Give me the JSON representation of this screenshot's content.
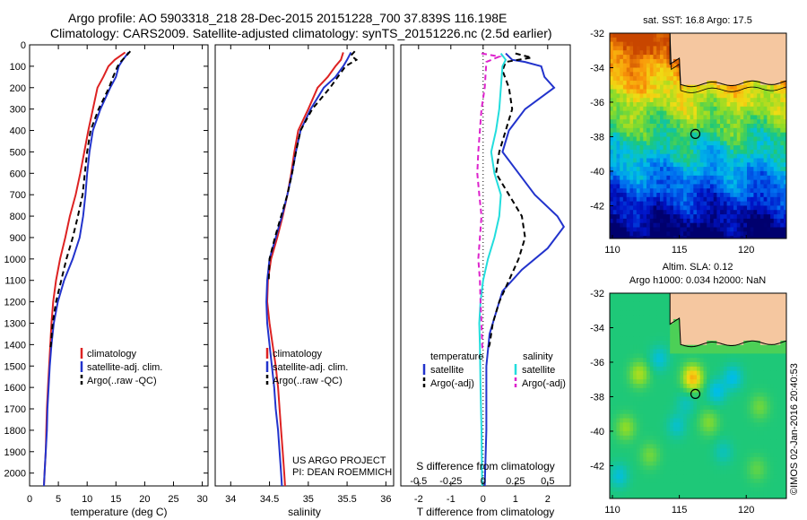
{
  "header": {
    "line1": "Argo profile: AO 5903318_218 28-Dec-2015 20151228_700 37.839S 116.198E",
    "line2": "Climatology: CARS2009. Satellite-adjusted climatology: synTS_20151226.nc (2.5d earlier)"
  },
  "credit": {
    "project": "US ARGO PROJECT",
    "pi": "PI: DEAN ROEMMICH",
    "stamp": "©IMOS 02-Jan-2016 20:40:53"
  },
  "colors": {
    "climatology": "#dd2222",
    "satellite": "#2233cc",
    "argo": "#000000",
    "cyan": "#22dddd",
    "magenta": "#dd22cc"
  },
  "chart_data": [
    {
      "type": "line",
      "xlabel": "temperature (deg C)",
      "ylabel": "",
      "xlim": [
        0,
        31
      ],
      "ylim": [
        2060,
        0
      ],
      "xticks": [
        0,
        5,
        10,
        15,
        20,
        25,
        30
      ],
      "yticks": [
        0,
        100,
        200,
        300,
        400,
        500,
        600,
        700,
        800,
        900,
        1000,
        1100,
        1200,
        1300,
        1400,
        1500,
        1600,
        1700,
        1800,
        1900,
        2000
      ],
      "legend": [
        "climatology",
        "satellite-adj. clim.",
        "Argo(..raw -QC)"
      ],
      "series": [
        {
          "name": "climatology",
          "color": "#dd2222",
          "dash": false,
          "points": [
            [
              16.6,
              35
            ],
            [
              14.8,
              70
            ],
            [
              13.7,
              100
            ],
            [
              12.8,
              150
            ],
            [
              11.8,
              200
            ],
            [
              11.0,
              300
            ],
            [
              10.2,
              400
            ],
            [
              9.5,
              500
            ],
            [
              8.8,
              600
            ],
            [
              8.0,
              700
            ],
            [
              7.0,
              800
            ],
            [
              6.2,
              900
            ],
            [
              5.3,
              1000
            ],
            [
              4.6,
              1100
            ],
            [
              4.1,
              1200
            ],
            [
              3.8,
              1300
            ],
            [
              3.6,
              1400
            ],
            [
              3.4,
              1500
            ],
            [
              3.2,
              1600
            ],
            [
              3.0,
              1700
            ],
            [
              2.9,
              1800
            ],
            [
              2.8,
              1900
            ],
            [
              2.6,
              2000
            ],
            [
              2.5,
              2060
            ]
          ]
        },
        {
          "name": "satellite-adj. clim.",
          "color": "#2233cc",
          "dash": false,
          "points": [
            [
              17.2,
              35
            ],
            [
              16.2,
              70
            ],
            [
              15.5,
              100
            ],
            [
              15.0,
              150
            ],
            [
              14.0,
              200
            ],
            [
              12.3,
              300
            ],
            [
              11.0,
              400
            ],
            [
              10.4,
              500
            ],
            [
              10.0,
              600
            ],
            [
              9.7,
              700
            ],
            [
              9.3,
              800
            ],
            [
              8.7,
              900
            ],
            [
              7.5,
              1000
            ],
            [
              6.0,
              1100
            ],
            [
              4.9,
              1200
            ],
            [
              4.2,
              1300
            ],
            [
              3.8,
              1400
            ],
            [
              3.5,
              1500
            ],
            [
              3.3,
              1600
            ],
            [
              3.1,
              1700
            ],
            [
              3.0,
              1800
            ],
            [
              2.8,
              1900
            ],
            [
              2.6,
              2000
            ],
            [
              2.5,
              2060
            ]
          ]
        },
        {
          "name": "Argo(..raw -QC)",
          "color": "#000000",
          "dash": true,
          "points": [
            [
              17.5,
              30
            ],
            [
              16.5,
              60
            ],
            [
              15.8,
              80
            ],
            [
              15.3,
              100
            ],
            [
              14.5,
              150
            ],
            [
              13.8,
              200
            ],
            [
              12.0,
              300
            ],
            [
              10.6,
              400
            ],
            [
              10.0,
              500
            ],
            [
              9.6,
              600
            ],
            [
              9.2,
              700
            ],
            [
              8.4,
              800
            ],
            [
              7.5,
              900
            ],
            [
              6.4,
              1000
            ],
            [
              5.5,
              1100
            ],
            [
              4.6,
              1200
            ],
            [
              4.0,
              1300
            ],
            [
              3.7,
              1400
            ],
            [
              3.6,
              1420
            ]
          ]
        }
      ]
    },
    {
      "type": "line",
      "xlabel": "salinity",
      "ylabel": "",
      "xlim": [
        33.8,
        36.1
      ],
      "ylim": [
        2060,
        0
      ],
      "xticks": [
        34,
        34.5,
        35,
        35.5,
        36
      ],
      "yticks": [],
      "legend": [
        "climatology",
        "satellite-adj. clim.",
        "Argo(..raw -QC)"
      ],
      "series": [
        {
          "name": "climatology",
          "color": "#dd2222",
          "dash": false,
          "points": [
            [
              35.45,
              35
            ],
            [
              35.42,
              70
            ],
            [
              35.35,
              100
            ],
            [
              35.25,
              150
            ],
            [
              35.12,
              200
            ],
            [
              35.0,
              300
            ],
            [
              34.87,
              400
            ],
            [
              34.82,
              500
            ],
            [
              34.78,
              600
            ],
            [
              34.73,
              700
            ],
            [
              34.67,
              800
            ],
            [
              34.6,
              900
            ],
            [
              34.52,
              1000
            ],
            [
              34.48,
              1100
            ],
            [
              34.47,
              1200
            ],
            [
              34.5,
              1300
            ],
            [
              34.54,
              1400
            ],
            [
              34.58,
              1500
            ],
            [
              34.61,
              1600
            ],
            [
              34.63,
              1700
            ],
            [
              34.65,
              1800
            ],
            [
              34.67,
              1900
            ],
            [
              34.69,
              2000
            ],
            [
              34.7,
              2060
            ]
          ]
        },
        {
          "name": "satellite-adj. clim.",
          "color": "#2233cc",
          "dash": false,
          "points": [
            [
              35.55,
              35
            ],
            [
              35.5,
              70
            ],
            [
              35.45,
              100
            ],
            [
              35.35,
              150
            ],
            [
              35.2,
              200
            ],
            [
              35.03,
              300
            ],
            [
              34.9,
              400
            ],
            [
              34.84,
              500
            ],
            [
              34.79,
              600
            ],
            [
              34.73,
              700
            ],
            [
              34.66,
              800
            ],
            [
              34.58,
              900
            ],
            [
              34.5,
              1000
            ],
            [
              34.47,
              1100
            ],
            [
              34.46,
              1200
            ],
            [
              34.47,
              1300
            ],
            [
              34.5,
              1400
            ],
            [
              34.53,
              1500
            ],
            [
              34.56,
              1600
            ],
            [
              34.58,
              1700
            ],
            [
              34.61,
              1800
            ],
            [
              34.63,
              1900
            ],
            [
              34.65,
              2000
            ],
            [
              34.66,
              2060
            ]
          ]
        },
        {
          "name": "Argo(..raw -QC)",
          "color": "#000000",
          "dash": true,
          "points": [
            [
              35.6,
              30
            ],
            [
              35.55,
              50
            ],
            [
              35.62,
              70
            ],
            [
              35.48,
              100
            ],
            [
              35.38,
              150
            ],
            [
              35.28,
              200
            ],
            [
              35.05,
              300
            ],
            [
              34.9,
              400
            ],
            [
              34.84,
              500
            ],
            [
              34.79,
              600
            ],
            [
              34.73,
              700
            ],
            [
              34.65,
              800
            ],
            [
              34.57,
              900
            ],
            [
              34.5,
              1000
            ],
            [
              34.49,
              1100
            ]
          ]
        }
      ]
    },
    {
      "type": "line",
      "xlabel": "T difference from climatology",
      "xlabel2": "S difference from climatology",
      "ylabel": "",
      "xlim": [
        -2.55,
        2.7
      ],
      "ylim": [
        2060,
        0
      ],
      "xticks": [
        -2,
        -1,
        0,
        1,
        2
      ],
      "xticks2": [
        -0.5,
        -0.25,
        0,
        0.25,
        0.5
      ],
      "xtick2_labels": [
        "-0.5",
        "-0.25",
        "0",
        "0.25",
        "0.5"
      ],
      "yticks": [],
      "legend_temperature_header": "temperature",
      "legend_salinity_header": "salinity",
      "legend": [
        "satellite",
        "Argo(-adj)",
        "satellite",
        "Argo(-adj)"
      ],
      "series": [
        {
          "name": "satellite",
          "color": "#2233cc",
          "dash": false,
          "points": [
            [
              0.7,
              40
            ],
            [
              0.9,
              70
            ],
            [
              1.3,
              80
            ],
            [
              1.8,
              100
            ],
            [
              1.9,
              150
            ],
            [
              2.2,
              200
            ],
            [
              1.3,
              300
            ],
            [
              0.8,
              400
            ],
            [
              0.6,
              500
            ],
            [
              1.1,
              600
            ],
            [
              1.6,
              700
            ],
            [
              2.3,
              800
            ],
            [
              2.5,
              850
            ],
            [
              2.0,
              950
            ],
            [
              1.2,
              1050
            ],
            [
              0.6,
              1150
            ],
            [
              0.4,
              1250
            ],
            [
              0.2,
              1350
            ],
            [
              0.1,
              1500
            ],
            [
              0.1,
              1800
            ],
            [
              0.05,
              2060
            ]
          ]
        },
        {
          "name": "Argo(-adj)",
          "color": "#000000",
          "dash": true,
          "points": [
            [
              1.0,
              40
            ],
            [
              1.5,
              60
            ],
            [
              0.7,
              80
            ],
            [
              0.6,
              120
            ],
            [
              0.8,
              200
            ],
            [
              0.9,
              300
            ],
            [
              0.7,
              400
            ],
            [
              0.5,
              500
            ],
            [
              0.4,
              600
            ],
            [
              0.8,
              700
            ],
            [
              1.2,
              800
            ],
            [
              1.3,
              900
            ],
            [
              1.1,
              1000
            ],
            [
              0.8,
              1100
            ],
            [
              0.5,
              1200
            ],
            [
              0.3,
              1300
            ],
            [
              0.2,
              1400
            ],
            [
              0.15,
              1420
            ]
          ]
        },
        {
          "name": "satellite",
          "color": "#22dddd",
          "dash": false,
          "points": [
            [
              0.55,
              40
            ],
            [
              0.7,
              70
            ],
            [
              0.6,
              100
            ],
            [
              0.55,
              200
            ],
            [
              0.5,
              300
            ],
            [
              0.4,
              400
            ],
            [
              0.25,
              500
            ],
            [
              0.35,
              600
            ],
            [
              0.55,
              700
            ],
            [
              0.5,
              800
            ],
            [
              0.35,
              900
            ],
            [
              0.15,
              1000
            ],
            [
              0.0,
              1100
            ],
            [
              -0.08,
              1200
            ],
            [
              -0.12,
              1300
            ],
            [
              -0.1,
              1400
            ],
            [
              -0.08,
              1600
            ],
            [
              -0.05,
              1800
            ],
            [
              -0.03,
              2060
            ]
          ]
        },
        {
          "name": "Argo(-adj)",
          "color": "#dd22cc",
          "dash": true,
          "points": [
            [
              -0.05,
              40
            ],
            [
              0.5,
              55
            ],
            [
              0.1,
              80
            ],
            [
              0.05,
              200
            ],
            [
              -0.05,
              300
            ],
            [
              -0.1,
              400
            ],
            [
              -0.15,
              500
            ],
            [
              -0.18,
              600
            ],
            [
              -0.12,
              700
            ],
            [
              -0.05,
              800
            ],
            [
              -0.1,
              900
            ],
            [
              -0.15,
              1000
            ],
            [
              -0.1,
              1100
            ],
            [
              -0.08,
              1200
            ],
            [
              -0.05,
              1300
            ],
            [
              -0.03,
              1400
            ],
            [
              -0.02,
              1420
            ]
          ]
        }
      ]
    },
    {
      "type": "heatmap",
      "title": "sat. SST: 16.8 Argo: 17.5",
      "xlim": [
        109.8,
        123
      ],
      "ylim": [
        -43.9,
        -32
      ],
      "xticks": [
        110,
        115,
        120
      ],
      "yticks": [
        -32,
        -34,
        -36,
        -38,
        -40,
        -42
      ],
      "profile_location": [
        116.198,
        -37.839
      ]
    },
    {
      "type": "heatmap",
      "title": "Altim. SLA: 0.12",
      "title2": "Argo h1000: 0.034 h2000: NaN",
      "xlim": [
        109.8,
        123
      ],
      "ylim": [
        -43.9,
        -32
      ],
      "xticks": [
        110,
        115,
        120
      ],
      "yticks": [
        -32,
        -34,
        -36,
        -38,
        -40,
        -42
      ],
      "profile_location": [
        116.198,
        -37.839
      ]
    }
  ]
}
